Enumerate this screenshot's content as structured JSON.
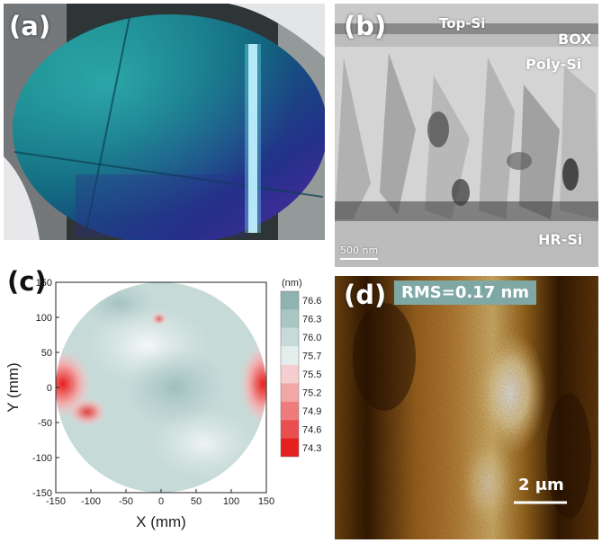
{
  "panels": {
    "a": {
      "label": "(a)"
    },
    "b": {
      "label": "(b)",
      "layers": {
        "top_si": "Top-Si",
        "box": "BOX",
        "poly_si": "Poly-Si",
        "hr_si": "HR-Si"
      },
      "scale_bar": "500 nm"
    },
    "c": {
      "label": "(c)"
    },
    "d": {
      "label": "(d)",
      "rms": "RMS=0.17 nm",
      "scale_bar": "2 μm"
    }
  },
  "chart_data": {
    "type": "heatmap",
    "xlabel": "X (mm)",
    "ylabel": "Y (mm)",
    "xlim": [
      -150,
      150
    ],
    "ylim": [
      -150,
      150
    ],
    "xticks": [
      -150,
      -100,
      -50,
      0,
      50,
      100,
      150
    ],
    "yticks": [
      150,
      100,
      50,
      0,
      -50,
      -100,
      -150
    ],
    "colorbar": {
      "unit": "(nm)",
      "levels": [
        "76.6",
        "76.3",
        "76.0",
        "75.7",
        "75.5",
        "75.2",
        "74.9",
        "74.6",
        "74.3"
      ],
      "colors": [
        "#8fb3b0",
        "#a9c6c3",
        "#c6dad8",
        "#e3eeed",
        "#f5cfcf",
        "#f2a7a7",
        "#ee7c7c",
        "#ea4f4f",
        "#e61f1f"
      ]
    },
    "colors": {
      "wafer_base": "#c6dad8",
      "hot": "#e61f1f",
      "cool": "#8fb3b0"
    }
  }
}
